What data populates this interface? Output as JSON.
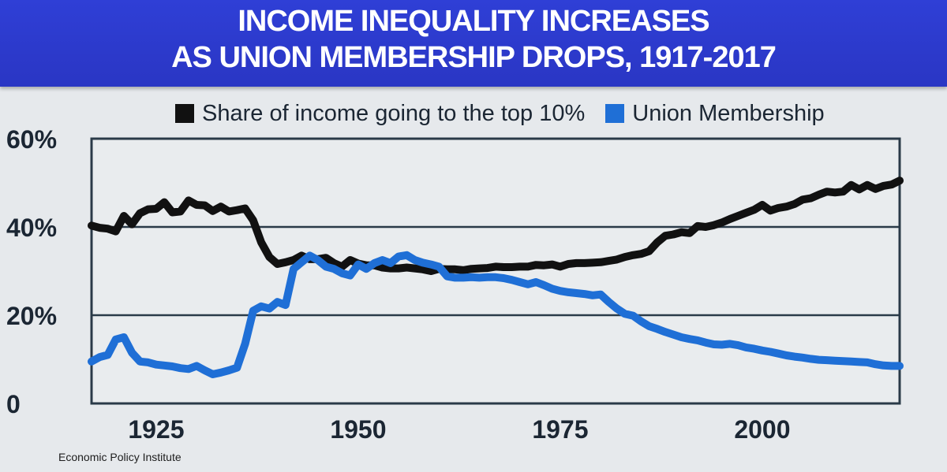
{
  "header": {
    "title_line1": "INCOME INEQUALITY INCREASES",
    "title_line2": "AS UNION MEMBERSHIP DROPS, 1917-2017"
  },
  "footer": {
    "source": "Economic Policy Institute"
  },
  "colors": {
    "banner": "#2e3cd2",
    "union": "#1f6fd6",
    "income": "#111111",
    "plot_bg": "#e9ecee"
  },
  "chart_data": {
    "type": "line",
    "title": "INCOME INEQUALITY INCREASES AS UNION MEMBERSHIP DROPS, 1917-2017",
    "xlim": [
      1917,
      2017
    ],
    "ylim": [
      0,
      60
    ],
    "grid": true,
    "legend_position": "top",
    "y_ticks": [
      {
        "value": 0,
        "label": "0"
      },
      {
        "value": 20,
        "label": "20%"
      },
      {
        "value": 40,
        "label": "40%"
      },
      {
        "value": 60,
        "label": "60%"
      }
    ],
    "x_ticks": [
      {
        "value": 1925,
        "label": "1925"
      },
      {
        "value": 1950,
        "label": "1950"
      },
      {
        "value": 1975,
        "label": "1975"
      },
      {
        "value": 2000,
        "label": "2000"
      }
    ],
    "series": [
      {
        "name": "Share of income going to the top 10%",
        "color": "#111111",
        "x": [
          1917,
          1918,
          1919,
          1920,
          1921,
          1922,
          1923,
          1924,
          1925,
          1926,
          1927,
          1928,
          1929,
          1930,
          1931,
          1932,
          1933,
          1934,
          1935,
          1936,
          1937,
          1938,
          1939,
          1940,
          1941,
          1942,
          1943,
          1944,
          1945,
          1946,
          1947,
          1948,
          1949,
          1950,
          1951,
          1952,
          1953,
          1954,
          1955,
          1956,
          1957,
          1958,
          1959,
          1960,
          1961,
          1962,
          1963,
          1964,
          1965,
          1966,
          1967,
          1968,
          1969,
          1970,
          1971,
          1972,
          1973,
          1974,
          1975,
          1976,
          1977,
          1978,
          1979,
          1980,
          1981,
          1982,
          1983,
          1984,
          1985,
          1986,
          1987,
          1988,
          1989,
          1990,
          1991,
          1992,
          1993,
          1994,
          1995,
          1996,
          1997,
          1998,
          1999,
          2000,
          2001,
          2002,
          2003,
          2004,
          2005,
          2006,
          2007,
          2008,
          2009,
          2010,
          2011,
          2012,
          2013,
          2014,
          2015,
          2016,
          2017
        ],
        "values": [
          40.3,
          39.8,
          39.6,
          39.0,
          42.5,
          40.6,
          43.1,
          44.0,
          44.1,
          45.6,
          43.3,
          43.5,
          46.0,
          45.0,
          44.9,
          43.6,
          44.6,
          43.5,
          43.8,
          44.2,
          41.5,
          36.5,
          33.2,
          31.6,
          32.0,
          32.5,
          33.5,
          32.7,
          32.7,
          33.0,
          31.8,
          31.0,
          32.5,
          31.7,
          31.3,
          31.3,
          30.8,
          30.6,
          30.6,
          30.8,
          30.6,
          30.4,
          30.0,
          30.5,
          30.4,
          30.4,
          30.2,
          30.5,
          30.6,
          30.7,
          31.0,
          30.9,
          30.9,
          31.0,
          31.0,
          31.4,
          31.3,
          31.5,
          31.0,
          31.6,
          31.8,
          31.8,
          31.9,
          32.0,
          32.3,
          32.6,
          33.2,
          33.6,
          33.9,
          34.5,
          36.5,
          38.0,
          38.3,
          38.8,
          38.6,
          40.2,
          40.0,
          40.4,
          41.0,
          41.8,
          42.5,
          43.2,
          43.9,
          45.0,
          43.7,
          44.3,
          44.6,
          45.2,
          46.2,
          46.5,
          47.3,
          48.0,
          47.8,
          48.0,
          49.5,
          48.5,
          49.5,
          48.6,
          49.3,
          49.6,
          50.5
        ]
      },
      {
        "name": "Union Membership",
        "color": "#1f6fd6",
        "x": [
          1917,
          1918,
          1919,
          1920,
          1921,
          1922,
          1923,
          1924,
          1925,
          1926,
          1927,
          1928,
          1929,
          1930,
          1931,
          1932,
          1933,
          1934,
          1935,
          1936,
          1937,
          1938,
          1939,
          1940,
          1941,
          1942,
          1943,
          1944,
          1945,
          1946,
          1947,
          1948,
          1949,
          1950,
          1951,
          1952,
          1953,
          1954,
          1955,
          1956,
          1957,
          1958,
          1959,
          1960,
          1961,
          1962,
          1963,
          1964,
          1965,
          1966,
          1967,
          1968,
          1969,
          1970,
          1971,
          1972,
          1973,
          1974,
          1975,
          1976,
          1977,
          1978,
          1979,
          1980,
          1981,
          1982,
          1983,
          1984,
          1985,
          1986,
          1987,
          1988,
          1989,
          1990,
          1991,
          1992,
          1993,
          1994,
          1995,
          1996,
          1997,
          1998,
          1999,
          2000,
          2001,
          2002,
          2003,
          2004,
          2005,
          2006,
          2007,
          2008,
          2009,
          2010,
          2011,
          2012,
          2013,
          2014,
          2015,
          2016,
          2017
        ],
        "values": [
          9.5,
          10.5,
          11.0,
          14.5,
          15.0,
          11.5,
          9.5,
          9.3,
          8.8,
          8.6,
          8.4,
          8.0,
          7.8,
          8.5,
          7.5,
          6.6,
          7.0,
          7.5,
          8.1,
          13.5,
          21.0,
          22.0,
          21.5,
          23.0,
          22.3,
          30.5,
          32.0,
          33.5,
          32.5,
          31.0,
          30.5,
          29.5,
          29.0,
          31.5,
          30.5,
          31.8,
          32.5,
          31.8,
          33.3,
          33.6,
          32.5,
          31.9,
          31.5,
          31.0,
          28.8,
          28.5,
          28.5,
          28.6,
          28.5,
          28.6,
          28.6,
          28.4,
          28.0,
          27.5,
          27.0,
          27.5,
          26.8,
          26.0,
          25.5,
          25.2,
          25.0,
          24.8,
          24.5,
          24.7,
          23.0,
          21.5,
          20.3,
          19.9,
          18.6,
          17.5,
          16.9,
          16.2,
          15.6,
          15.0,
          14.6,
          14.3,
          13.8,
          13.4,
          13.3,
          13.5,
          13.2,
          12.7,
          12.4,
          12.0,
          11.7,
          11.3,
          10.9,
          10.6,
          10.4,
          10.1,
          9.9,
          9.8,
          9.7,
          9.6,
          9.5,
          9.4,
          9.3,
          8.9,
          8.6,
          8.5,
          8.5
        ]
      }
    ]
  }
}
